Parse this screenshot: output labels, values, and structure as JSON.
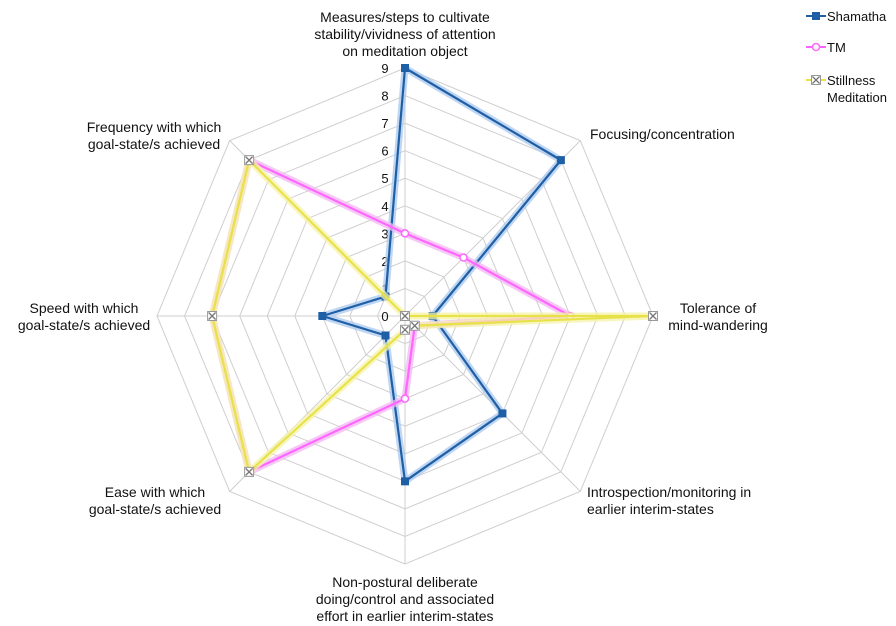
{
  "chart_data": {
    "type": "radar",
    "axes": [
      {
        "label_lines": [
          "Measures/steps to cultivate",
          "stability/vividness of attention",
          "on meditation object"
        ]
      },
      {
        "label_lines": [
          "Focusing/concentration"
        ]
      },
      {
        "label_lines": [
          "Tolerance of",
          "mind-wandering"
        ]
      },
      {
        "label_lines": [
          "Introspection/monitoring in",
          "earlier interim-states"
        ]
      },
      {
        "label_lines": [
          "Non-postural deliberate",
          "doing/control and associated",
          "effort in earlier interim-states"
        ]
      },
      {
        "label_lines": [
          "Ease with which",
          "goal-state/s achieved"
        ]
      },
      {
        "label_lines": [
          "Speed with which",
          "goal-state/s achieved"
        ]
      },
      {
        "label_lines": [
          "Frequency with which",
          "goal-state/s achieved"
        ]
      }
    ],
    "rlim": [
      0,
      9
    ],
    "ticks": [
      "0",
      "1",
      "2",
      "3",
      "4",
      "5",
      "6",
      "7",
      "8",
      "9"
    ],
    "grid": true,
    "legend_position": "top-right",
    "series": [
      {
        "name": "Shamatha",
        "name_lines": [
          "Shamatha"
        ],
        "color": "#1f5fa6",
        "glow": "#a9c8ef",
        "marker": "square",
        "values": [
          9,
          8,
          1,
          5,
          6,
          1,
          3,
          1
        ]
      },
      {
        "name": "TM",
        "name_lines": [
          "TM"
        ],
        "color": "#ff66ff",
        "glow": "#f2b6f2",
        "marker": "circle",
        "values": [
          3,
          3,
          6,
          0.5,
          3,
          8,
          7,
          8
        ]
      },
      {
        "name": "Stillness Meditation",
        "name_lines": [
          "Stillness",
          "Meditation"
        ],
        "color": "#e8e24a",
        "glow": "#f6f3a8",
        "marker": "x",
        "values": [
          0,
          0,
          9,
          0.5,
          0.5,
          8,
          7,
          8
        ]
      }
    ]
  }
}
